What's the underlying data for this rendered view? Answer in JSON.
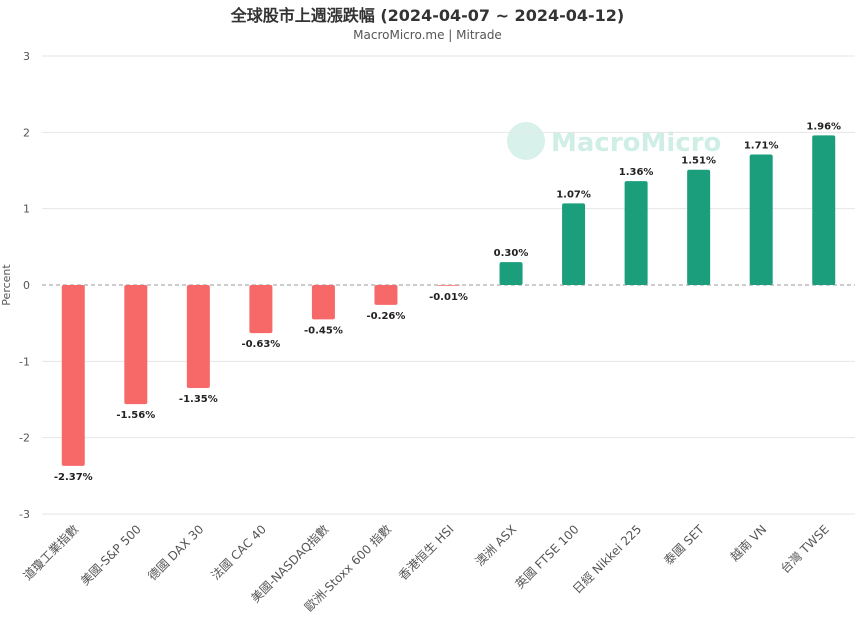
{
  "title": "全球股市上週漲跌幅 (2024-04-07 ~ 2024-04-12)",
  "subtitle": "MacroMicro.me | Mitrade",
  "watermark": "MacroMicro",
  "colors": {
    "positive": "#1a9e7c",
    "negative": "#f76868",
    "grid": "#e6e6e6",
    "zero_line": "#999999"
  },
  "chart_data": {
    "type": "bar",
    "title": "全球股市上週漲跌幅 (2024-04-07 ~ 2024-04-12)",
    "subtitle": "MacroMicro.me | Mitrade",
    "ylabel": "Percent",
    "ylim": [
      -3,
      3
    ],
    "yticks": [
      3,
      2,
      1,
      0,
      -1,
      -2,
      -3
    ],
    "grid": true,
    "categories": [
      "道瓊工業指數",
      "美國-S&P 500",
      "德國 DAX 30",
      "法國 CAC 40",
      "美國-NASDAQ指數",
      "歐洲-Stoxx 600 指數",
      "香港恒生 HSI",
      "澳洲 ASX",
      "英國 FTSE 100",
      "日經 Nikkei 225",
      "泰國 SET",
      "越南 VN",
      "台灣 TWSE"
    ],
    "values": [
      -2.37,
      -1.56,
      -1.35,
      -0.63,
      -0.45,
      -0.26,
      -0.01,
      0.3,
      1.07,
      1.36,
      1.51,
      1.71,
      1.96
    ],
    "value_labels": [
      "-2.37%",
      "-1.56%",
      "-1.35%",
      "-0.63%",
      "-0.45%",
      "-0.26%",
      "-0.01%",
      "0.30%",
      "1.07%",
      "1.36%",
      "1.51%",
      "1.71%",
      "1.96%"
    ]
  }
}
